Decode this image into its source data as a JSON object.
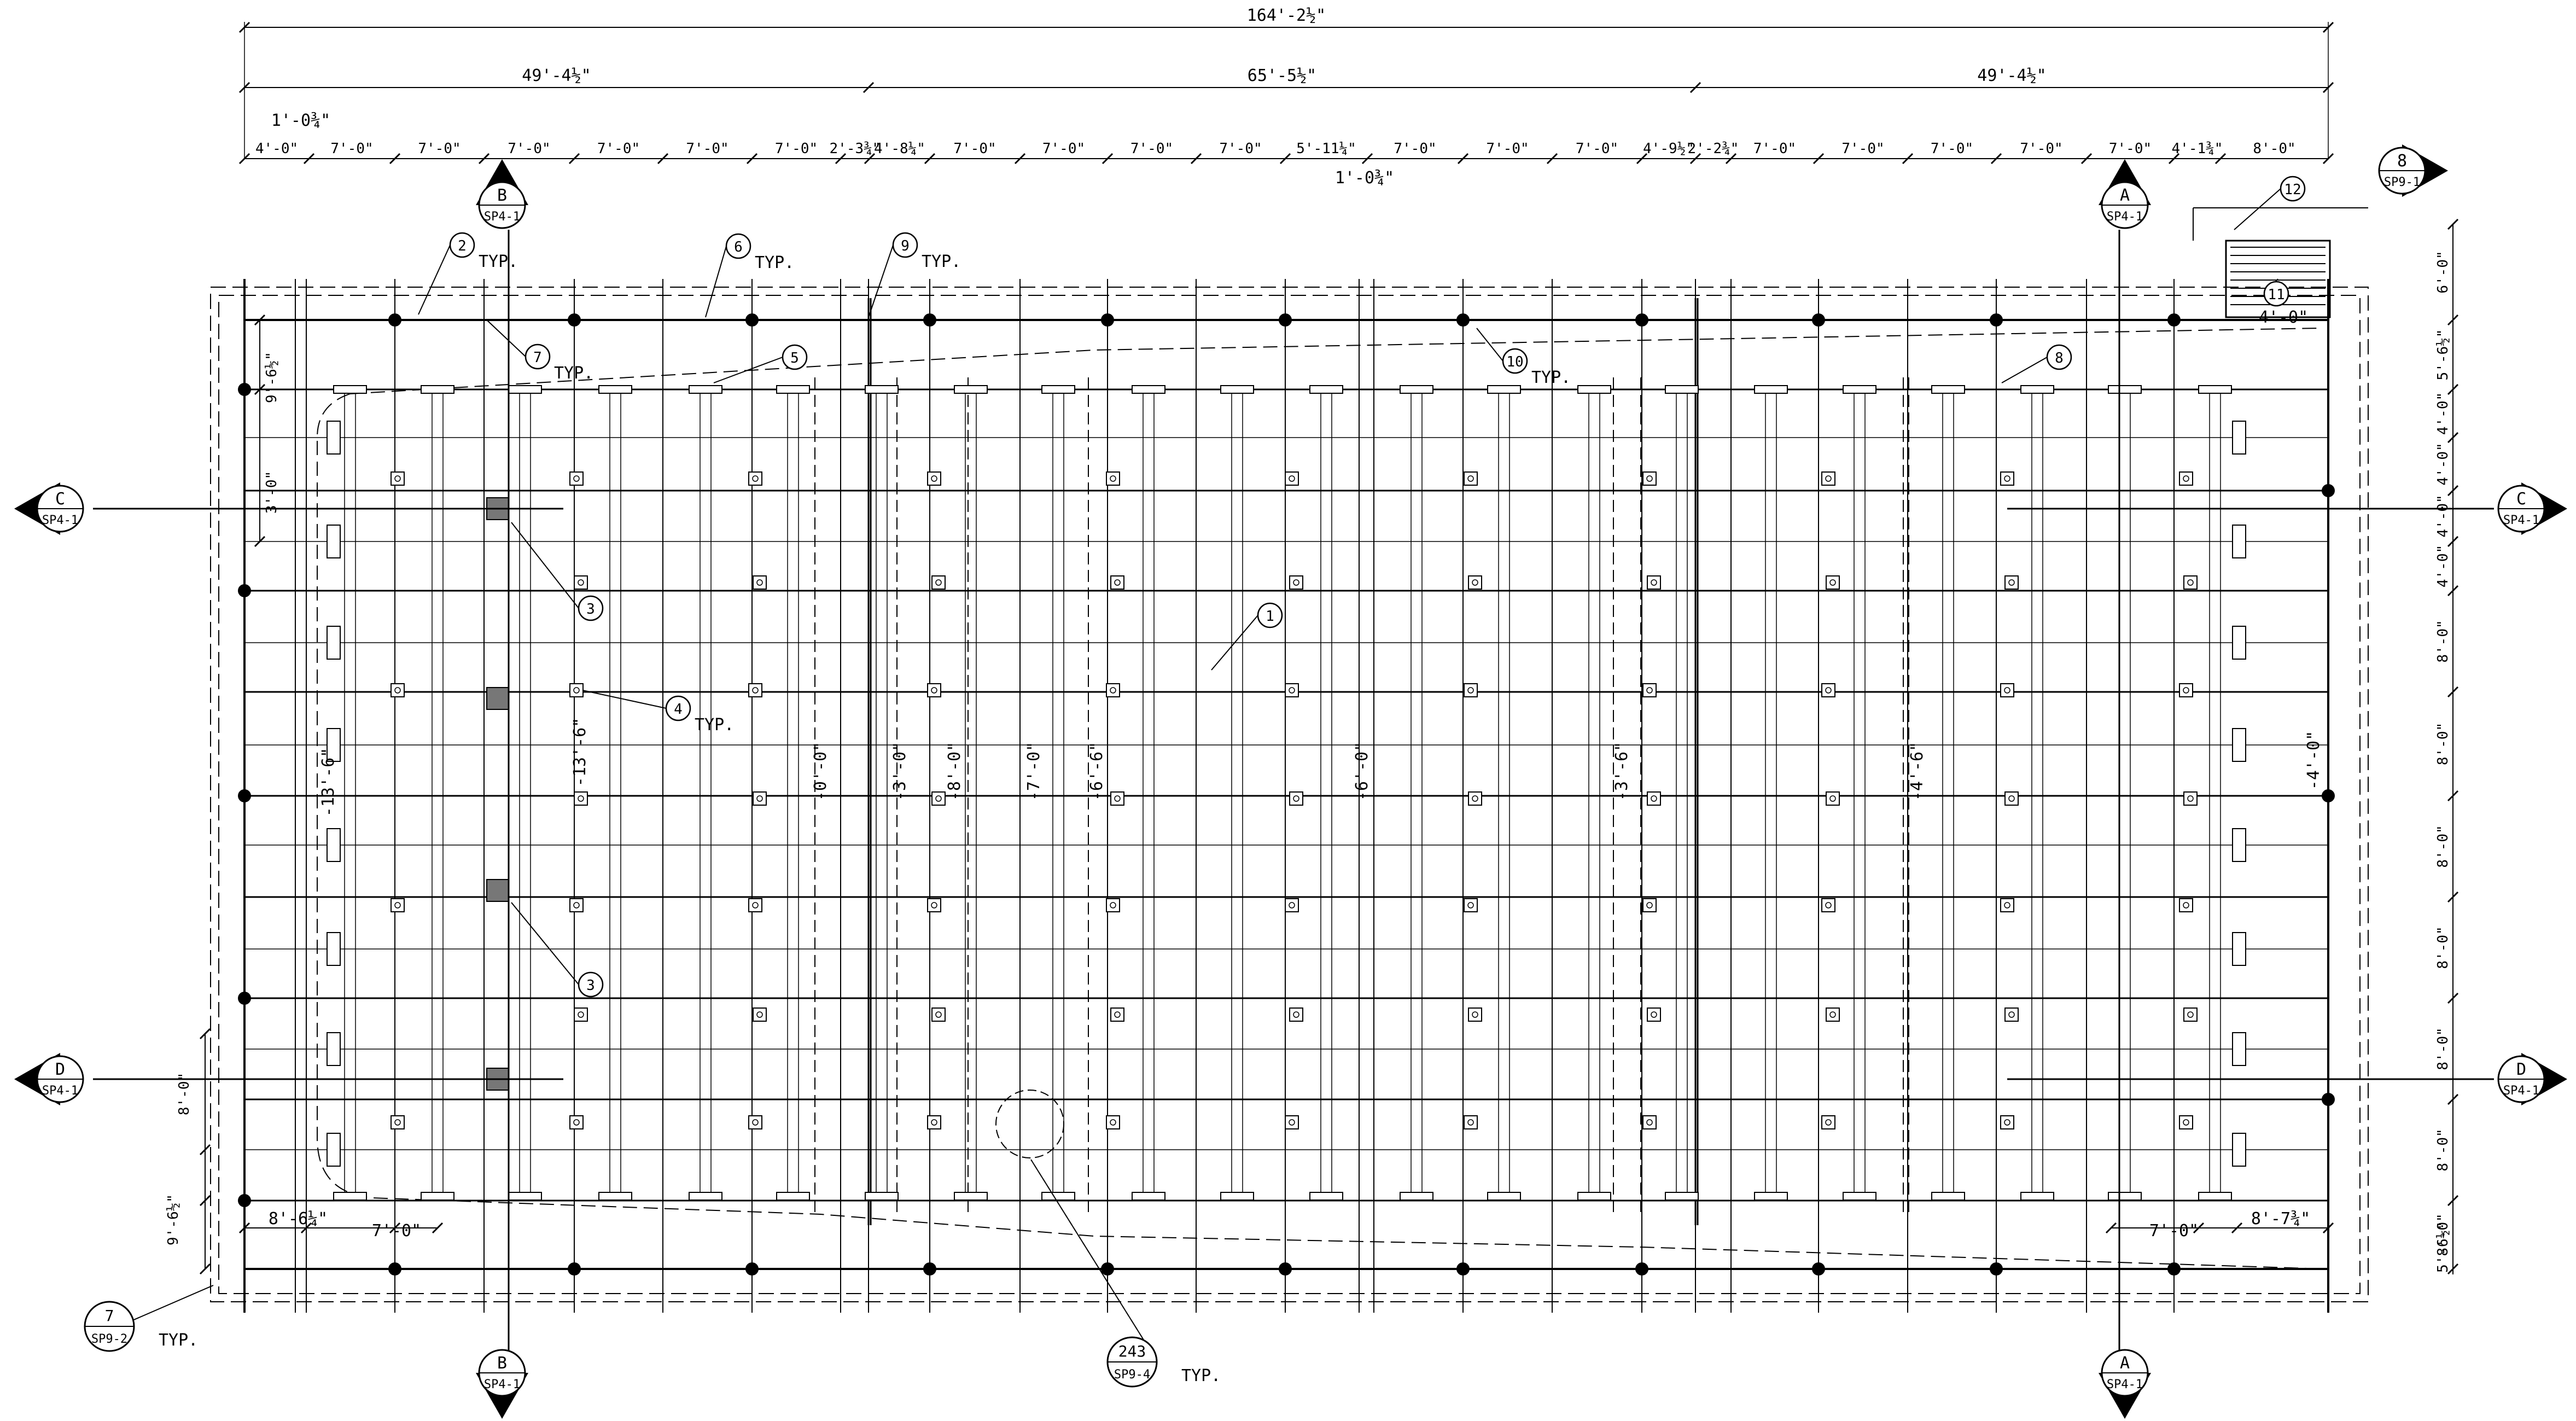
{
  "overall_dimension": "164'-2½\"",
  "span_dimensions": [
    "49'-4½\"",
    "65'-5½\"",
    "49'-4½\""
  ],
  "top_bay_dimensions": [
    "4'-0\"",
    "7'-0\"",
    "7'-0\"",
    "7'-0\"",
    "7'-0\"",
    "7'-0\"",
    "7'-0\"",
    "2'-3¾\"",
    "4'-8¼\"",
    "7'-0\"",
    "7'-0\"",
    "7'-0\"",
    "7'-0\"",
    "5'-11¼\"",
    "7'-0\"",
    "7'-0\"",
    "7'-0\"",
    "4'-9½\"",
    "2'-2¾\"",
    "7'-0\"",
    "7'-0\"",
    "7'-0\"",
    "7'-0\"",
    "7'-0\"",
    "4'-1¾\"",
    "8'-0\""
  ],
  "top_extra_dimensions": [
    "1'-0¾\"",
    "1'-0¾\""
  ],
  "right_dimensions": [
    "6'-0\"",
    "5'-6½\"",
    "4'-0\"",
    "4'-0\"",
    "4'-0\"",
    "4'-0\"",
    "8'-0\"",
    "8'-0\"",
    "8'-0\"",
    "8'-0\"",
    "8'-0\"",
    "8'-0\"",
    "8'-0\"",
    "5'-6½\""
  ],
  "left_dimensions": [
    "9'-6½\"",
    "3'-0\"",
    "8'-0\"",
    "9'-6½\""
  ],
  "bottom_dimensions": [
    "8'-6¼\"",
    "7'-0\"",
    "7'-0\"",
    "8'-7¾\""
  ],
  "roof_step_dimensions": [
    "4'-0\"",
    "-13'-6\"",
    "-13'-6\"",
    "-0'-0\"",
    "-3'-0\"",
    "-8'-0\"",
    "-7'-0\"",
    "-6'-6\"",
    "-6'-0\"",
    "-3'-6\"",
    "-4'-6\"",
    "-4'-0\""
  ],
  "section_markers": [
    {
      "id": "C",
      "sheet": "SP4-1",
      "side": "left"
    },
    {
      "id": "D",
      "sheet": "SP4-1",
      "side": "left"
    },
    {
      "id": "C",
      "sheet": "SP4-1",
      "side": "right"
    },
    {
      "id": "D",
      "sheet": "SP4-1",
      "side": "right"
    },
    {
      "id": "B",
      "sheet": "SP4-1",
      "side": "top"
    },
    {
      "id": "A",
      "sheet": "SP4-1",
      "side": "top"
    },
    {
      "id": "B",
      "sheet": "SP4-1",
      "side": "bottom"
    },
    {
      "id": "A",
      "sheet": "SP4-1",
      "side": "bottom"
    },
    {
      "id": "8",
      "sheet": "SP9-1",
      "side": "top-right"
    }
  ],
  "detail_callouts": [
    {
      "num": "7",
      "sheet": "SP9-2",
      "note": "TYP."
    },
    {
      "num": "243",
      "sheet": "SP9-4",
      "note": "TYP."
    }
  ],
  "keynotes": [
    {
      "num": "1",
      "note": ""
    },
    {
      "num": "2",
      "note": "TYP."
    },
    {
      "num": "3",
      "note": ""
    },
    {
      "num": "3",
      "note": ""
    },
    {
      "num": "4",
      "note": "TYP."
    },
    {
      "num": "5",
      "note": ""
    },
    {
      "num": "6",
      "note": "TYP."
    },
    {
      "num": "7",
      "note": "TYP."
    },
    {
      "num": "8",
      "note": ""
    },
    {
      "num": "9",
      "note": "TYP."
    },
    {
      "num": "10",
      "note": "TYP."
    },
    {
      "num": "11",
      "note": ""
    },
    {
      "num": "12",
      "note": ""
    }
  ]
}
